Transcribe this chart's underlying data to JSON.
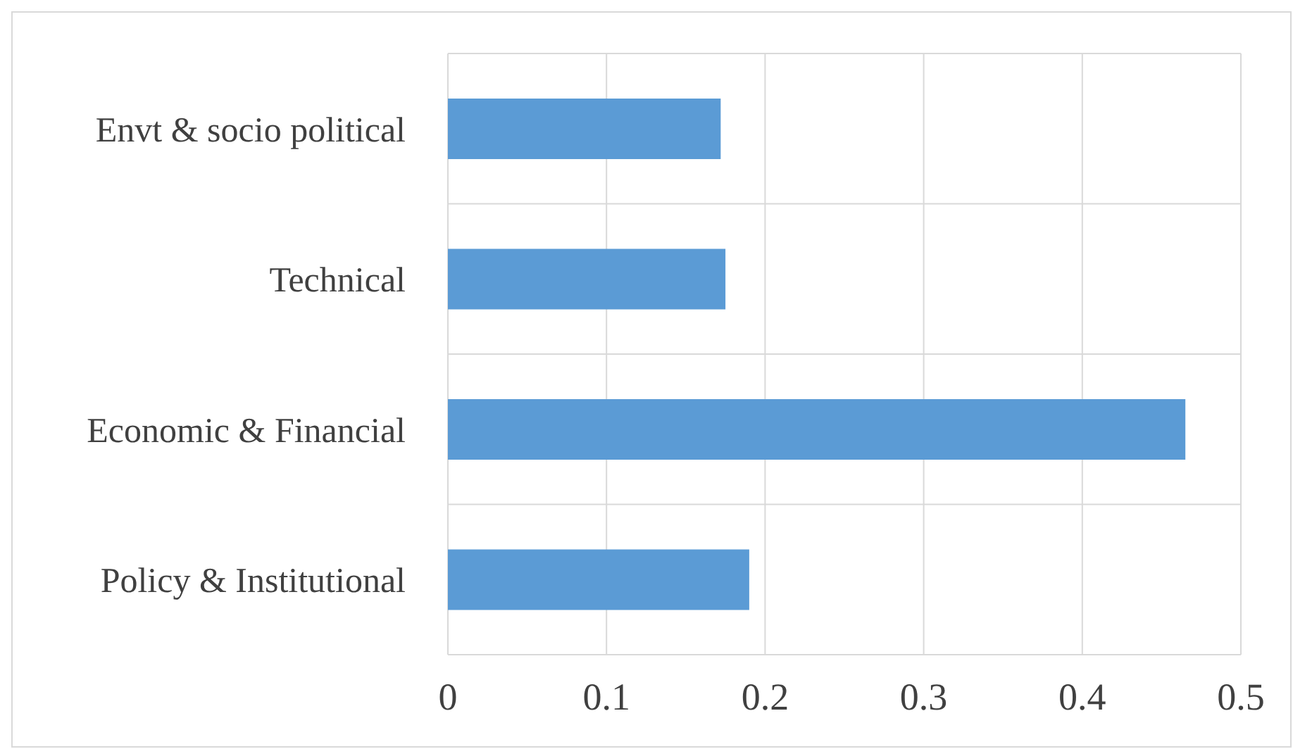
{
  "chart_data": {
    "type": "bar",
    "orientation": "horizontal",
    "categories": [
      "Envt & socio political",
      "Technical",
      "Economic & Financial",
      "Policy & Institutional"
    ],
    "values": [
      0.172,
      0.175,
      0.465,
      0.19
    ],
    "color": "#5b9bd5",
    "xlim": [
      0,
      0.5
    ],
    "xticks": [
      0,
      0.1,
      0.2,
      0.3,
      0.4,
      0.5
    ],
    "grid": true
  }
}
